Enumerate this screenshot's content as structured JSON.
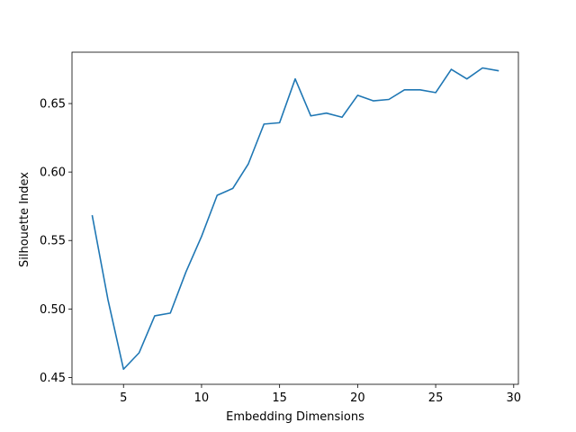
{
  "chart_data": {
    "type": "line",
    "title": "",
    "xlabel": "Embedding Dimensions",
    "ylabel": "Silhouette Index",
    "xlim": [
      1.7,
      30.3
    ],
    "ylim": [
      0.445,
      0.6875
    ],
    "xticks": [
      5,
      10,
      15,
      20,
      25,
      30
    ],
    "xtick_labels": [
      "5",
      "10",
      "15",
      "20",
      "25",
      "30"
    ],
    "yticks": [
      0.45,
      0.5,
      0.55,
      0.6,
      0.65
    ],
    "ytick_labels": [
      "0.45",
      "0.50",
      "0.55",
      "0.60",
      "0.65"
    ],
    "grid": false,
    "series": [
      {
        "name": "Silhouette Index",
        "color": "#1f77b4",
        "x": [
          3,
          4,
          5,
          6,
          7,
          8,
          9,
          10,
          11,
          12,
          13,
          14,
          15,
          16,
          17,
          18,
          19,
          20,
          21,
          22,
          23,
          24,
          25,
          26,
          27,
          28,
          29
        ],
        "y": [
          0.568,
          0.507,
          0.456,
          0.468,
          0.495,
          0.497,
          0.527,
          0.553,
          0.583,
          0.588,
          0.606,
          0.635,
          0.636,
          0.668,
          0.641,
          0.643,
          0.64,
          0.656,
          0.652,
          0.653,
          0.66,
          0.66,
          0.658,
          0.675,
          0.668,
          0.676,
          0.674
        ]
      }
    ]
  }
}
